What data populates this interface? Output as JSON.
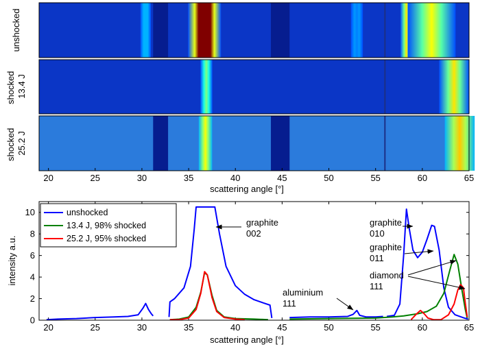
{
  "chart_data": [
    {
      "type": "heatmap",
      "xlabel": "scattering angle [°]",
      "xlim": [
        19,
        65
      ],
      "xticks": [
        20,
        25,
        30,
        35,
        40,
        45,
        50,
        55,
        60,
        65
      ],
      "colormap": "jet",
      "panels": [
        {
          "label_lines": [
            "unshocked"
          ],
          "features": [
            {
              "type": "background",
              "level": 0.2
            },
            {
              "type": "gap",
              "x": [
                31.2,
                32.8
              ]
            },
            {
              "type": "gap",
              "x": [
                43.8,
                45.8
              ]
            },
            {
              "type": "dark_line",
              "x": 56.0
            },
            {
              "type": "peak",
              "center": 36.7,
              "half_width": 1.1,
              "level": 1.0,
              "flat_top": true
            },
            {
              "type": "peak",
              "center": 30.4,
              "half_width": 0.35,
              "level": 0.3
            },
            {
              "type": "peak",
              "center": 53.0,
              "half_width": 0.4,
              "level": 0.25
            },
            {
              "type": "peak",
              "center": 58.3,
              "half_width": 0.4,
              "level": 0.65
            },
            {
              "type": "peak",
              "center": 61.0,
              "half_width": 1.6,
              "level": 0.62
            }
          ]
        },
        {
          "label_lines": [
            "shocked",
            "13.4 J"
          ],
          "features": [
            {
              "type": "background",
              "level": 0.2
            },
            {
              "type": "dark_line",
              "x": 56.0
            },
            {
              "type": "peak",
              "center": 36.9,
              "half_width": 0.4,
              "level": 0.5
            },
            {
              "type": "peak",
              "center": 63.4,
              "half_width": 1.0,
              "level": 0.65
            }
          ]
        },
        {
          "label_lines": [
            "shocked",
            "25.2 J"
          ],
          "features": [
            {
              "type": "background",
              "level": 0.3
            },
            {
              "type": "gap",
              "x": [
                31.2,
                32.8
              ]
            },
            {
              "type": "gap",
              "x": [
                43.8,
                45.8
              ]
            },
            {
              "type": "dark_line",
              "x": 56.0
            },
            {
              "type": "peak",
              "center": 36.8,
              "half_width": 0.45,
              "level": 0.62
            },
            {
              "type": "peak",
              "center": 64.0,
              "half_width": 1.0,
              "level": 0.68
            }
          ]
        }
      ]
    },
    {
      "type": "line",
      "xlabel": "scattering angle [°]",
      "ylabel": "intensity a.u.",
      "xlim": [
        19,
        65
      ],
      "ylim": [
        0,
        11
      ],
      "xticks": [
        20,
        25,
        30,
        35,
        40,
        45,
        50,
        55,
        60,
        65
      ],
      "yticks": [
        0,
        2,
        4,
        6,
        8,
        10
      ],
      "legend_position": "top-left",
      "series": [
        {
          "name": "unshocked",
          "color": "#0000ff",
          "segments": [
            [
              [
                19.8,
                0.05
              ],
              [
                21,
                0.1
              ],
              [
                23,
                0.15
              ],
              [
                25,
                0.25
              ],
              [
                27,
                0.3
              ],
              [
                28.5,
                0.35
              ],
              [
                29.6,
                0.5
              ],
              [
                30.1,
                1.1
              ],
              [
                30.4,
                1.55
              ],
              [
                30.7,
                1.0
              ],
              [
                31.0,
                0.6
              ],
              [
                31.2,
                0.4
              ]
            ],
            [
              [
                32.9,
                0.3
              ],
              [
                33.0,
                1.7
              ],
              [
                33.5,
                2.0
              ],
              [
                34.5,
                3.0
              ],
              [
                35.2,
                5.0
              ],
              [
                35.6,
                8.5
              ],
              [
                35.8,
                10.5
              ],
              [
                37.8,
                10.5
              ],
              [
                38.3,
                8.0
              ],
              [
                39.0,
                5.0
              ],
              [
                40.0,
                3.2
              ],
              [
                41.0,
                2.4
              ],
              [
                42.0,
                1.9
              ],
              [
                43.0,
                1.6
              ],
              [
                43.7,
                1.4
              ],
              [
                43.9,
                0.2
              ]
            ],
            [
              [
                45.8,
                0.25
              ],
              [
                48,
                0.3
              ],
              [
                50,
                0.3
              ],
              [
                52,
                0.35
              ],
              [
                52.6,
                0.55
              ],
              [
                53.0,
                0.9
              ],
              [
                53.3,
                0.45
              ],
              [
                54,
                0.3
              ],
              [
                55,
                0.3
              ],
              [
                55.8,
                0.35
              ]
            ],
            [
              [
                56.2,
                0.35
              ],
              [
                57.0,
                0.45
              ],
              [
                57.6,
                1.5
              ],
              [
                58.0,
                6.0
              ],
              [
                58.3,
                10.3
              ],
              [
                58.6,
                8.5
              ],
              [
                59.0,
                6.5
              ],
              [
                59.5,
                5.8
              ],
              [
                60.0,
                6.3
              ],
              [
                60.5,
                7.5
              ],
              [
                61.0,
                8.8
              ],
              [
                61.3,
                8.7
              ],
              [
                61.8,
                6.5
              ],
              [
                62.3,
                3.0
              ],
              [
                62.8,
                1.2
              ],
              [
                63.5,
                0.5
              ],
              [
                64.5,
                0.2
              ],
              [
                64.9,
                0.1
              ]
            ]
          ]
        },
        {
          "name": "13.4 J, 98% shocked",
          "color": "#008000",
          "segments": [
            [
              [
                33.0,
                0.05
              ],
              [
                34.0,
                0.1
              ],
              [
                35.0,
                0.3
              ],
              [
                35.8,
                1.2
              ],
              [
                36.3,
                2.6
              ],
              [
                36.7,
                4.4
              ],
              [
                37.0,
                4.2
              ],
              [
                37.5,
                2.3
              ],
              [
                38.0,
                0.9
              ],
              [
                38.8,
                0.3
              ],
              [
                40,
                0.15
              ],
              [
                42,
                0.1
              ],
              [
                43.5,
                0.05
              ]
            ],
            [
              [
                45.8,
                0.1
              ],
              [
                50,
                0.15
              ],
              [
                55,
                0.2
              ],
              [
                56.8,
                0.3
              ],
              [
                58,
                0.4
              ],
              [
                59.5,
                0.6
              ],
              [
                60.5,
                0.8
              ],
              [
                61.5,
                1.3
              ],
              [
                62.3,
                2.5
              ],
              [
                62.9,
                4.5
              ],
              [
                63.4,
                6.1
              ],
              [
                63.8,
                5.2
              ],
              [
                64.2,
                3.0
              ],
              [
                64.6,
                1.0
              ],
              [
                64.8,
                0.2
              ]
            ]
          ]
        },
        {
          "name": "25.2 J, 95% shocked",
          "color": "#ff0000",
          "segments": [
            [
              [
                33.0,
                0.05
              ],
              [
                34.0,
                0.05
              ],
              [
                35.0,
                0.2
              ],
              [
                35.8,
                1.0
              ],
              [
                36.3,
                2.5
              ],
              [
                36.7,
                4.5
              ],
              [
                37.0,
                4.2
              ],
              [
                37.5,
                2.1
              ],
              [
                38.0,
                0.8
              ],
              [
                38.8,
                0.25
              ],
              [
                40,
                0.1
              ],
              [
                41,
                0.05
              ]
            ],
            [
              [
                58.8,
                0.05
              ],
              [
                59.4,
                0.6
              ],
              [
                59.8,
                0.9
              ],
              [
                60.2,
                0.6
              ],
              [
                60.6,
                0.2
              ],
              [
                61.2,
                0.05
              ],
              [
                62.0,
                0.05
              ],
              [
                62.8,
                0.5
              ],
              [
                63.4,
                1.5
              ],
              [
                63.8,
                2.8
              ],
              [
                64.1,
                3.3
              ],
              [
                64.4,
                3.0
              ],
              [
                64.6,
                1.6
              ],
              [
                64.8,
                0.3
              ]
            ]
          ]
        }
      ],
      "annotations": [
        {
          "lines": [
            "graphite",
            "002"
          ]
        },
        {
          "lines": [
            "graphite",
            "010"
          ]
        },
        {
          "lines": [
            "graphite",
            "011"
          ]
        },
        {
          "lines": [
            "diamond",
            "111"
          ]
        },
        {
          "lines": [
            "aluminium",
            "111"
          ]
        }
      ]
    }
  ]
}
